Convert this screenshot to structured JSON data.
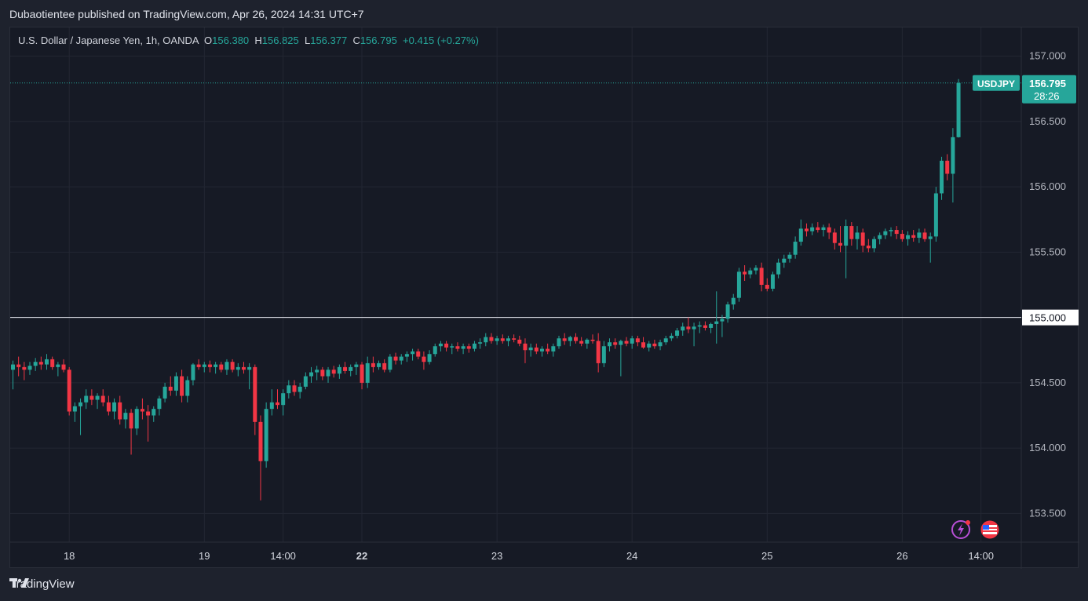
{
  "publisher_line": "Dubaotientee published on TradingView.com, Apr 26, 2024 14:31 UTC+7",
  "footer_brand": "TradingView",
  "colors": {
    "up": "#26a69a",
    "down": "#f23645",
    "background": "#161a25",
    "grid": "#232733"
  },
  "chart_data": {
    "type": "candlestick",
    "symbol_line": "U.S. Dollar / Japanese Yen, 1h, OANDA",
    "ohlc_labels": {
      "O": "156.380",
      "H": "156.825",
      "L": "156.377",
      "C": "156.795",
      "change": "+0.415 (+0.27%)"
    },
    "price_tag": {
      "symbol": "USDJPY",
      "price": "156.795",
      "countdown": "28:26",
      "value": 156.795
    },
    "horizontal_line": {
      "value": 155.0,
      "label": "155.000"
    },
    "ylim": [
      153.28,
      157.22
    ],
    "y_ticks": [
      157.0,
      156.5,
      156.0,
      155.5,
      155.0,
      154.5,
      154.0,
      153.5
    ],
    "y_tick_labels": [
      "157.000",
      "156.500",
      "156.000",
      "155.500",
      "155.000",
      "154.500",
      "154.000",
      "153.500"
    ],
    "x_ticks": [
      {
        "label": "18",
        "bar": 10,
        "bold": false
      },
      {
        "label": "19",
        "bar": 34,
        "bold": false
      },
      {
        "label": "14:00",
        "bar": 48,
        "bold": false
      },
      {
        "label": "22",
        "bar": 62,
        "bold": true
      },
      {
        "label": "23",
        "bar": 86,
        "bold": false
      },
      {
        "label": "24",
        "bar": 110,
        "bold": false
      },
      {
        "label": "25",
        "bar": 134,
        "bold": false
      },
      {
        "label": "26",
        "bar": 158,
        "bold": false
      },
      {
        "label": "14:00",
        "bar": 172,
        "bold": false
      }
    ],
    "candles": [
      [
        154.6,
        154.67,
        154.45,
        154.64
      ],
      [
        154.64,
        154.7,
        154.55,
        154.62
      ],
      [
        154.62,
        154.66,
        154.52,
        154.6
      ],
      [
        154.6,
        154.66,
        154.56,
        154.63
      ],
      [
        154.63,
        154.69,
        154.59,
        154.66
      ],
      [
        154.66,
        154.7,
        154.6,
        154.64
      ],
      [
        154.64,
        154.72,
        154.6,
        154.68
      ],
      [
        154.68,
        154.7,
        154.6,
        154.62
      ],
      [
        154.62,
        154.66,
        154.55,
        154.64
      ],
      [
        154.64,
        154.68,
        154.58,
        154.6
      ],
      [
        154.6,
        154.62,
        154.25,
        154.28
      ],
      [
        154.28,
        154.35,
        154.2,
        154.32
      ],
      [
        154.32,
        154.38,
        154.1,
        154.35
      ],
      [
        154.35,
        154.45,
        154.3,
        154.4
      ],
      [
        154.4,
        154.45,
        154.33,
        154.37
      ],
      [
        154.37,
        154.42,
        154.3,
        154.4
      ],
      [
        154.4,
        154.45,
        154.32,
        154.35
      ],
      [
        154.35,
        154.4,
        154.25,
        154.28
      ],
      [
        154.28,
        154.38,
        154.22,
        154.35
      ],
      [
        154.35,
        154.4,
        154.18,
        154.22
      ],
      [
        154.22,
        154.3,
        154.15,
        154.27
      ],
      [
        154.27,
        154.3,
        153.95,
        154.15
      ],
      [
        154.15,
        154.32,
        154.1,
        154.3
      ],
      [
        154.3,
        154.38,
        154.22,
        154.28
      ],
      [
        154.28,
        154.33,
        154.05,
        154.25
      ],
      [
        154.25,
        154.32,
        154.2,
        154.3
      ],
      [
        154.3,
        154.4,
        154.25,
        154.38
      ],
      [
        154.38,
        154.5,
        154.35,
        154.47
      ],
      [
        154.47,
        154.55,
        154.4,
        154.44
      ],
      [
        154.44,
        154.58,
        154.4,
        154.55
      ],
      [
        154.55,
        154.6,
        154.35,
        154.4
      ],
      [
        154.4,
        154.55,
        154.35,
        154.52
      ],
      [
        154.52,
        154.65,
        154.48,
        154.64
      ],
      [
        154.64,
        154.68,
        154.6,
        154.62
      ],
      [
        154.62,
        154.66,
        154.58,
        154.64
      ],
      [
        154.64,
        154.67,
        154.58,
        154.62
      ],
      [
        154.62,
        154.66,
        154.57,
        154.64
      ],
      [
        154.64,
        154.66,
        154.58,
        154.6
      ],
      [
        154.6,
        154.68,
        154.56,
        154.66
      ],
      [
        154.66,
        154.68,
        154.58,
        154.6
      ],
      [
        154.6,
        154.65,
        154.55,
        154.62
      ],
      [
        154.62,
        154.66,
        154.57,
        154.6
      ],
      [
        154.6,
        154.65,
        154.45,
        154.62
      ],
      [
        154.62,
        154.64,
        154.1,
        154.2
      ],
      [
        154.2,
        154.25,
        153.6,
        153.9
      ],
      [
        153.9,
        154.35,
        153.85,
        154.3
      ],
      [
        154.3,
        154.45,
        154.25,
        154.35
      ],
      [
        154.35,
        154.45,
        154.3,
        154.33
      ],
      [
        154.33,
        154.45,
        154.25,
        154.42
      ],
      [
        154.42,
        154.52,
        154.38,
        154.48
      ],
      [
        154.48,
        154.52,
        154.4,
        154.43
      ],
      [
        154.43,
        154.5,
        154.38,
        154.47
      ],
      [
        154.47,
        154.58,
        154.45,
        154.55
      ],
      [
        154.55,
        154.62,
        154.5,
        154.58
      ],
      [
        154.58,
        154.63,
        154.52,
        154.6
      ],
      [
        154.6,
        154.62,
        154.52,
        154.55
      ],
      [
        154.55,
        154.62,
        154.5,
        154.6
      ],
      [
        154.6,
        154.63,
        154.54,
        154.57
      ],
      [
        154.57,
        154.64,
        154.53,
        154.62
      ],
      [
        154.62,
        154.66,
        154.57,
        154.59
      ],
      [
        154.59,
        154.64,
        154.55,
        154.62
      ],
      [
        154.62,
        154.66,
        154.56,
        154.64
      ],
      [
        154.64,
        154.66,
        154.45,
        154.5
      ],
      [
        154.5,
        154.7,
        154.46,
        154.65
      ],
      [
        154.65,
        154.7,
        154.58,
        154.62
      ],
      [
        154.62,
        154.67,
        154.6,
        154.65
      ],
      [
        154.65,
        154.68,
        154.58,
        154.6
      ],
      [
        154.6,
        154.72,
        154.58,
        154.7
      ],
      [
        154.7,
        154.73,
        154.64,
        154.67
      ],
      [
        154.67,
        154.72,
        154.64,
        154.7
      ],
      [
        154.7,
        154.74,
        154.66,
        154.72
      ],
      [
        154.72,
        154.76,
        154.67,
        154.74
      ],
      [
        154.74,
        154.76,
        154.68,
        154.7
      ],
      [
        154.7,
        154.74,
        154.6,
        154.66
      ],
      [
        154.66,
        154.75,
        154.64,
        154.72
      ],
      [
        154.72,
        154.8,
        154.7,
        154.78
      ],
      [
        154.78,
        154.82,
        154.74,
        154.8
      ],
      [
        154.8,
        154.82,
        154.74,
        154.77
      ],
      [
        154.77,
        154.8,
        154.72,
        154.78
      ],
      [
        154.78,
        154.81,
        154.74,
        154.76
      ],
      [
        154.76,
        154.8,
        154.72,
        154.78
      ],
      [
        154.78,
        154.8,
        154.73,
        154.76
      ],
      [
        154.76,
        154.82,
        154.74,
        154.8
      ],
      [
        154.8,
        154.84,
        154.76,
        154.81
      ],
      [
        154.81,
        154.88,
        154.78,
        154.85
      ],
      [
        154.85,
        154.88,
        154.8,
        154.82
      ],
      [
        154.82,
        154.86,
        154.79,
        154.84
      ],
      [
        154.84,
        154.87,
        154.8,
        154.82
      ],
      [
        154.82,
        154.86,
        154.78,
        154.84
      ],
      [
        154.84,
        154.87,
        154.81,
        154.83
      ],
      [
        154.83,
        154.86,
        154.78,
        154.8
      ],
      [
        154.8,
        154.84,
        154.65,
        154.75
      ],
      [
        154.75,
        154.8,
        154.7,
        154.77
      ],
      [
        154.77,
        154.8,
        154.72,
        154.74
      ],
      [
        154.74,
        154.78,
        154.7,
        154.76
      ],
      [
        154.76,
        154.8,
        154.72,
        154.74
      ],
      [
        154.74,
        154.8,
        154.7,
        154.78
      ],
      [
        154.78,
        154.86,
        154.76,
        154.84
      ],
      [
        154.84,
        154.88,
        154.79,
        154.82
      ],
      [
        154.82,
        154.86,
        154.78,
        154.85
      ],
      [
        154.85,
        154.88,
        154.8,
        154.82
      ],
      [
        154.82,
        154.85,
        154.78,
        154.8
      ],
      [
        154.8,
        154.84,
        154.76,
        154.83
      ],
      [
        154.83,
        154.87,
        154.8,
        154.82
      ],
      [
        154.82,
        154.88,
        154.58,
        154.65
      ],
      [
        154.65,
        154.82,
        154.62,
        154.78
      ],
      [
        154.78,
        154.84,
        154.74,
        154.81
      ],
      [
        154.81,
        154.84,
        154.76,
        154.79
      ],
      [
        154.79,
        154.83,
        154.55,
        154.82
      ],
      [
        154.82,
        154.85,
        154.78,
        154.8
      ],
      [
        154.8,
        154.86,
        154.76,
        154.84
      ],
      [
        154.84,
        154.86,
        154.78,
        154.81
      ],
      [
        154.81,
        154.85,
        154.76,
        154.77
      ],
      [
        154.77,
        154.82,
        154.74,
        154.8
      ],
      [
        154.8,
        154.83,
        154.76,
        154.78
      ],
      [
        154.78,
        154.83,
        154.75,
        154.81
      ],
      [
        154.81,
        154.86,
        154.79,
        154.84
      ],
      [
        154.84,
        154.88,
        154.82,
        154.86
      ],
      [
        154.86,
        154.92,
        154.84,
        154.9
      ],
      [
        154.9,
        154.96,
        154.86,
        154.93
      ],
      [
        154.93,
        155.0,
        154.88,
        154.91
      ],
      [
        154.91,
        154.96,
        154.78,
        154.93
      ],
      [
        154.93,
        154.97,
        154.88,
        154.94
      ],
      [
        154.94,
        154.97,
        154.9,
        154.92
      ],
      [
        154.92,
        154.96,
        154.88,
        154.95
      ],
      [
        154.95,
        155.2,
        154.8,
        154.97
      ],
      [
        154.97,
        155.02,
        154.85,
        154.99
      ],
      [
        154.99,
        155.12,
        154.96,
        155.1
      ],
      [
        155.1,
        155.18,
        155.06,
        155.15
      ],
      [
        155.15,
        155.38,
        155.12,
        155.35
      ],
      [
        155.35,
        155.4,
        155.28,
        155.33
      ],
      [
        155.33,
        155.38,
        155.3,
        155.36
      ],
      [
        155.36,
        155.4,
        155.33,
        155.38
      ],
      [
        155.38,
        155.42,
        155.2,
        155.25
      ],
      [
        155.25,
        155.3,
        155.2,
        155.22
      ],
      [
        155.22,
        155.35,
        155.2,
        155.33
      ],
      [
        155.33,
        155.45,
        155.3,
        155.42
      ],
      [
        155.42,
        155.48,
        155.38,
        155.45
      ],
      [
        155.45,
        155.5,
        155.42,
        155.48
      ],
      [
        155.48,
        155.62,
        155.45,
        155.58
      ],
      [
        155.58,
        155.75,
        155.55,
        155.68
      ],
      [
        155.68,
        155.72,
        155.62,
        155.66
      ],
      [
        155.66,
        155.72,
        155.63,
        155.69
      ],
      [
        155.69,
        155.73,
        155.65,
        155.67
      ],
      [
        155.67,
        155.71,
        155.62,
        155.69
      ],
      [
        155.69,
        155.72,
        155.6,
        155.65
      ],
      [
        155.65,
        155.68,
        155.52,
        155.57
      ],
      [
        155.57,
        155.7,
        155.5,
        155.55
      ],
      [
        155.55,
        155.75,
        155.3,
        155.7
      ],
      [
        155.7,
        155.73,
        155.55,
        155.6
      ],
      [
        155.6,
        155.7,
        155.52,
        155.65
      ],
      [
        155.65,
        155.68,
        155.5,
        155.55
      ],
      [
        155.55,
        155.6,
        155.5,
        155.53
      ],
      [
        155.53,
        155.62,
        155.5,
        155.6
      ],
      [
        155.6,
        155.65,
        155.56,
        155.63
      ],
      [
        155.63,
        155.68,
        155.6,
        155.66
      ],
      [
        155.66,
        155.69,
        155.62,
        155.67
      ],
      [
        155.67,
        155.7,
        155.6,
        155.64
      ],
      [
        155.64,
        155.67,
        155.58,
        155.6
      ],
      [
        155.6,
        155.66,
        155.55,
        155.63
      ],
      [
        155.63,
        155.67,
        155.58,
        155.61
      ],
      [
        155.61,
        155.68,
        155.57,
        155.65
      ],
      [
        155.65,
        155.68,
        155.58,
        155.6
      ],
      [
        155.6,
        155.65,
        155.42,
        155.62
      ],
      [
        155.62,
        156.0,
        155.58,
        155.95
      ],
      [
        155.95,
        156.23,
        155.9,
        156.2
      ],
      [
        156.2,
        156.25,
        156.05,
        156.1
      ],
      [
        156.1,
        156.45,
        155.88,
        156.38
      ],
      [
        156.38,
        156.825,
        156.377,
        156.795
      ]
    ]
  }
}
